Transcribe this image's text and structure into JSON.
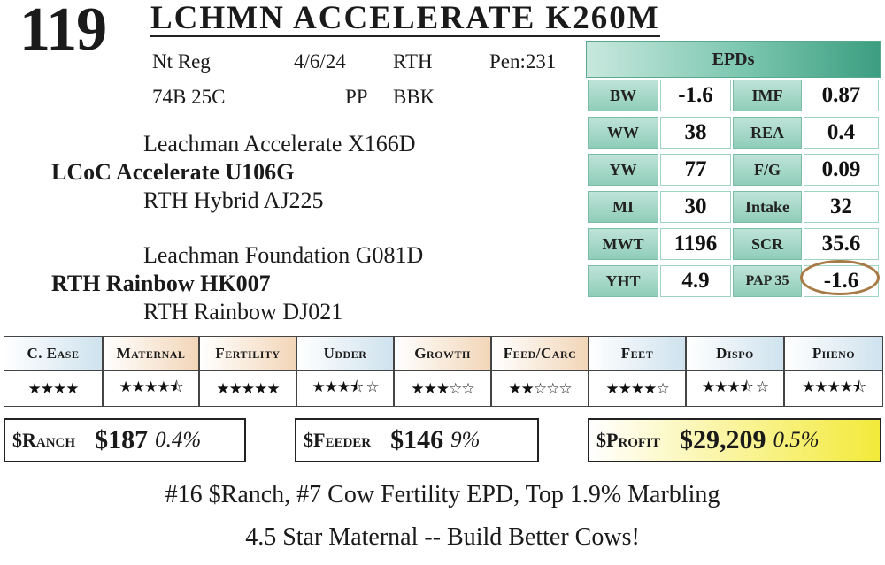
{
  "lot_number": "119",
  "animal_name": "LCHMN ACCELERATE K260M",
  "info": {
    "reg": "Nt Reg",
    "date": "4/6/24",
    "prefix": "RTH",
    "pen": "Pen:231",
    "ids": "74B 25C",
    "polled": "PP",
    "color": "BBK"
  },
  "pedigree": {
    "sire_sire": "Leachman Accelerate X166D",
    "sire": "LCoC Accelerate U106G",
    "sire_dam": "RTH Hybrid AJ225",
    "dam_sire": "Leachman Foundation G081D",
    "dam": "RTH Rainbow HK007",
    "dam_dam": "RTH Rainbow DJ021"
  },
  "epds": {
    "title": "EPDs",
    "rows": [
      {
        "l1": "BW",
        "v1": "-1.6",
        "l2": "IMF",
        "v2": "0.87"
      },
      {
        "l1": "WW",
        "v1": "38",
        "l2": "REA",
        "v2": "0.4"
      },
      {
        "l1": "YW",
        "v1": "77",
        "l2": "F/G",
        "v2": "0.09"
      },
      {
        "l1": "MI",
        "v1": "30",
        "l2": "Intake",
        "v2": "32"
      },
      {
        "l1": "MWT",
        "v1": "1196",
        "l2": "SCR",
        "v2": "35.6"
      },
      {
        "l1": "YHT",
        "v1": "4.9",
        "l2": "PAP 35",
        "v2": "-1.6"
      }
    ],
    "highlight_color": "#a87a45"
  },
  "traits": [
    {
      "label": "C. Ease",
      "stars": "★★★★"
    },
    {
      "label": "Maternal",
      "stars": "★★★★⯪"
    },
    {
      "label": "Fertility",
      "stars": "★★★★★"
    },
    {
      "label": "Udder",
      "stars": "★★★⯪ ☆"
    },
    {
      "label": "Growth",
      "stars": "★★★☆☆"
    },
    {
      "label": "Feed/Carc",
      "stars": "★★☆☆☆"
    },
    {
      "label": "Feet",
      "stars": "★★★★☆"
    },
    {
      "label": "Dispo",
      "stars": "★★★⯪ ☆"
    },
    {
      "label": "Pheno",
      "stars": "★★★★⯪"
    }
  ],
  "indexes": {
    "ranch": {
      "label": "$Ranch",
      "value": "$187",
      "pct": "0.4%"
    },
    "feeder": {
      "label": "$Feeder",
      "value": "$146",
      "pct": "9%"
    },
    "profit": {
      "label": "$Profit",
      "value": "$29,209",
      "pct": "0.5%"
    }
  },
  "footer": {
    "line1": "#16 $Ranch, #7 Cow Fertility EPD, Top 1.9% Marbling",
    "line2": "4.5 Star Maternal -- Build Better Cows!"
  },
  "colors": {
    "epd_header": "#79c5ad",
    "trait_blue": "#cfe2ee",
    "trait_tan": "#f2d6b8",
    "profit_yellow": "#f3ea3a"
  }
}
